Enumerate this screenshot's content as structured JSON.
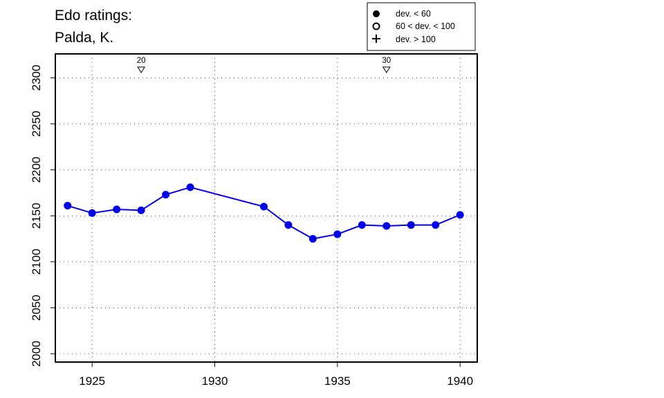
{
  "chart_data": {
    "type": "line",
    "title_lines": [
      "Edo ratings:",
      "Palda, K."
    ],
    "xlabel": "",
    "ylabel": "",
    "x_ticks": [
      1925,
      1930,
      1935,
      1940
    ],
    "y_ticks": [
      2000,
      2050,
      2100,
      2150,
      2200,
      2250,
      2300
    ],
    "xlim": [
      1923.5,
      1940.7
    ],
    "ylim": [
      1991,
      2326
    ],
    "grid": true,
    "legend_position": "top-right",
    "legend": [
      {
        "marker": "filled-circle",
        "label": "dev. < 60"
      },
      {
        "marker": "open-circle",
        "label": "60 < dev. < 100"
      },
      {
        "marker": "plus",
        "label": "dev. > 100"
      }
    ],
    "annotations": [
      {
        "x": 1927,
        "label": "20",
        "marker": "down-triangle"
      },
      {
        "x": 1937,
        "label": "30",
        "marker": "down-triangle"
      }
    ],
    "series": [
      {
        "color": "#0000ee",
        "marker": "filled-circle",
        "points": [
          {
            "x": 1924,
            "y": 2161
          },
          {
            "x": 1925,
            "y": 2153
          },
          {
            "x": 1926,
            "y": 2157
          },
          {
            "x": 1927,
            "y": 2156
          },
          {
            "x": 1928,
            "y": 2173
          },
          {
            "x": 1929,
            "y": 2181
          },
          {
            "x": 1932,
            "y": 2160
          },
          {
            "x": 1933,
            "y": 2140
          },
          {
            "x": 1934,
            "y": 2125
          },
          {
            "x": 1935,
            "y": 2130
          },
          {
            "x": 1936,
            "y": 2140
          },
          {
            "x": 1937,
            "y": 2139
          },
          {
            "x": 1938,
            "y": 2140
          },
          {
            "x": 1939,
            "y": 2140
          },
          {
            "x": 1940,
            "y": 2151
          }
        ]
      }
    ]
  }
}
